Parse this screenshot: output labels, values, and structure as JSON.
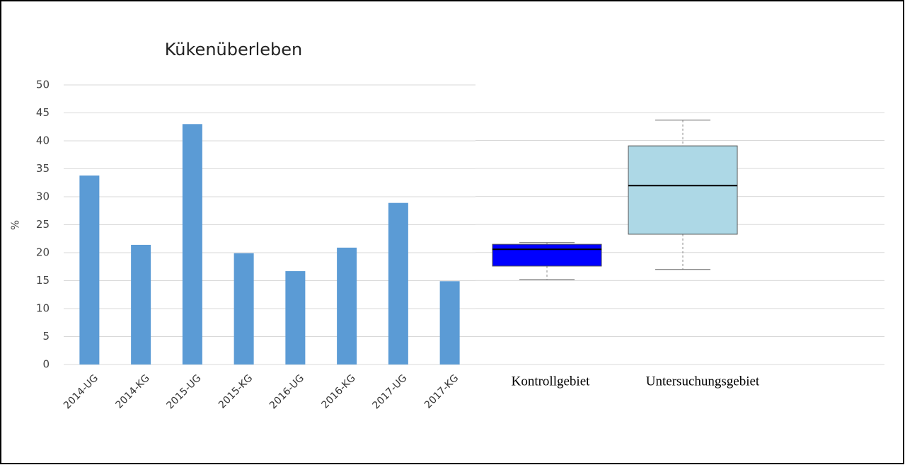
{
  "chart_data": [
    {
      "type": "bar",
      "title": "Kükenüberleben",
      "y_label": "%",
      "categories": [
        "2014-UG",
        "2014-KG",
        "2015-UG",
        "2015-KG",
        "2016-UG",
        "2016-KG",
        "2017-UG",
        "2017-KG"
      ],
      "values": [
        33.8,
        21.4,
        43.0,
        19.9,
        16.7,
        20.9,
        28.9,
        14.9
      ],
      "color": "#5b9bd5",
      "ylim": [
        0,
        50
      ],
      "yticks": [
        0,
        5,
        10,
        15,
        20,
        25,
        30,
        35,
        40,
        45,
        50
      ],
      "grid": true
    },
    {
      "type": "box",
      "ylim": [
        0,
        50
      ],
      "grid": true,
      "series": [
        {
          "name": "Kontrollgebiet",
          "color": "#0000ff",
          "whisker_low": 15.2,
          "q1": 17.6,
          "median": 20.6,
          "q3": 21.5,
          "whisker_high": 21.8
        },
        {
          "name": "Untersuchungsgebiet",
          "color": "#add8e6",
          "whisker_low": 17.0,
          "q1": 23.3,
          "median": 32.0,
          "q3": 39.1,
          "whisker_high": 43.7
        }
      ]
    }
  ]
}
